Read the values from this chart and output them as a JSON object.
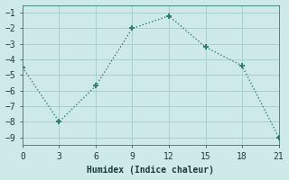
{
  "x": [
    0,
    3,
    6,
    9,
    12,
    15,
    18,
    21
  ],
  "y": [
    -4.5,
    -8.0,
    -5.7,
    -2.0,
    -1.2,
    -3.2,
    -4.4,
    -9.0
  ],
  "line_color": "#2e7d72",
  "bg_color": "#ceeae8",
  "grid_color": "#aacfcc",
  "xlabel": "Humidex (Indice chaleur)",
  "xlim": [
    0,
    21
  ],
  "ylim": [
    -9.5,
    -0.5
  ],
  "xticks": [
    0,
    3,
    6,
    9,
    12,
    15,
    18,
    21
  ],
  "yticks": [
    -1,
    -2,
    -3,
    -4,
    -5,
    -6,
    -7,
    -8,
    -9
  ],
  "markersize": 5,
  "linewidth": 1.0
}
